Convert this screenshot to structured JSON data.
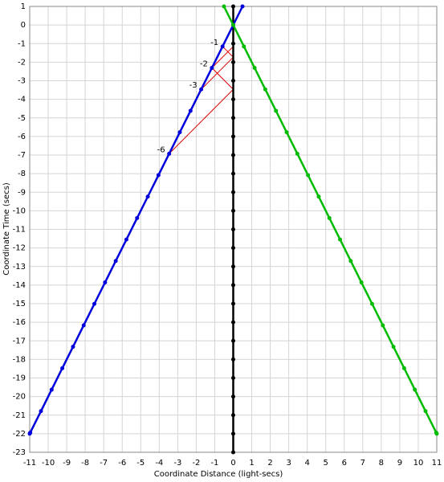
{
  "chart_data": {
    "type": "line",
    "xlabel": "Coordinate Distance (light-secs)",
    "ylabel": "Coordinate Time (secs)",
    "xlim": [
      -11,
      11
    ],
    "ylim": [
      -23,
      1
    ],
    "xticks": [
      -11,
      -10,
      -9,
      -8,
      -7,
      -6,
      -5,
      -4,
      -3,
      -2,
      -1,
      0,
      1,
      2,
      3,
      4,
      5,
      6,
      7,
      8,
      9,
      10,
      11
    ],
    "yticks": [
      -23,
      -22,
      -21,
      -20,
      -19,
      -18,
      -17,
      -16,
      -15,
      -14,
      -13,
      -12,
      -11,
      -10,
      -9,
      -8,
      -7,
      -6,
      -5,
      -4,
      -3,
      -2,
      -1,
      0,
      1
    ],
    "grid": true,
    "series": [
      {
        "color": "#000000",
        "x": [
          0,
          0,
          0,
          0,
          0,
          0,
          0,
          0,
          0,
          0,
          0,
          0,
          0,
          0,
          0,
          0,
          0,
          0,
          0,
          0,
          0,
          0,
          0,
          0,
          0
        ],
        "y": [
          1,
          0,
          -1,
          -2,
          -3,
          -4,
          -5,
          -6,
          -7,
          -8,
          -9,
          -10,
          -11,
          -12,
          -13,
          -14,
          -15,
          -16,
          -17,
          -18,
          -19,
          -20,
          -21,
          -22,
          -23
        ]
      },
      {
        "color": "#0000dd",
        "x": [
          0.5,
          0,
          -0.577,
          -1.155,
          -1.732,
          -2.309,
          -2.887,
          -3.464,
          -4.041,
          -4.619,
          -5.196,
          -5.774,
          -6.351,
          -6.928,
          -7.506,
          -8.083,
          -8.66,
          -9.238,
          -9.815,
          -10.392,
          -10.97,
          -11
        ],
        "y": [
          1,
          0,
          -1.155,
          -2.309,
          -3.464,
          -4.619,
          -5.774,
          -6.928,
          -8.083,
          -9.238,
          -10.392,
          -11.547,
          -12.702,
          -13.856,
          -15.011,
          -16.166,
          -17.321,
          -18.475,
          -19.63,
          -20.785,
          -21.939,
          -22
        ]
      },
      {
        "color": "#00bb00",
        "x": [
          -0.5,
          0,
          0.577,
          1.155,
          1.732,
          2.309,
          2.887,
          3.464,
          4.041,
          4.619,
          5.196,
          5.774,
          6.351,
          6.928,
          7.506,
          8.083,
          8.66,
          9.238,
          9.815,
          10.392,
          10.97,
          11
        ],
        "y": [
          1,
          0,
          -1.155,
          -2.309,
          -3.464,
          -4.619,
          -5.774,
          -6.928,
          -8.083,
          -9.238,
          -10.392,
          -11.547,
          -12.702,
          -13.856,
          -15.011,
          -16.166,
          -17.321,
          -18.475,
          -19.63,
          -20.785,
          -21.939,
          -22
        ]
      }
    ],
    "signals": {
      "color": "#e00000",
      "segments": [
        {
          "x1": -0.577,
          "y1": -1.155,
          "x2": 0,
          "y2": -1.732
        },
        {
          "x1": -1.155,
          "y1": -2.309,
          "x2": 0,
          "y2": -1.155
        },
        {
          "x1": -1.155,
          "y1": -2.309,
          "x2": 0,
          "y2": -3.464
        },
        {
          "x1": -1.732,
          "y1": -3.464,
          "x2": 0,
          "y2": -1.732
        },
        {
          "x1": -3.464,
          "y1": -6.928,
          "x2": 0,
          "y2": -3.464
        }
      ]
    },
    "annotations": [
      {
        "text": "-1",
        "x": -0.577,
        "y": -1.155
      },
      {
        "text": "-2",
        "x": -1.155,
        "y": -2.309
      },
      {
        "text": "-3",
        "x": -1.732,
        "y": -3.464
      },
      {
        "text": "-6",
        "x": -3.464,
        "y": -6.928
      }
    ]
  }
}
